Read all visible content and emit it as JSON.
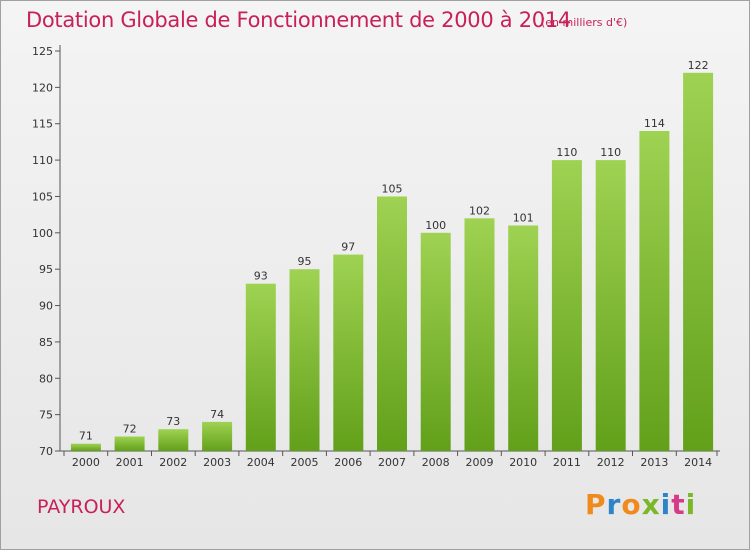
{
  "header": {
    "title": "Dotation Globale de Fonctionnement de 2000 à 2014",
    "unit": "(en milliers d'€)"
  },
  "footer": {
    "commune": "PAYROUX",
    "brand": "Proxiti"
  },
  "colors": {
    "accent": "#c8205a",
    "bar_top": "#9fd252",
    "bar_bottom": "#62a01a",
    "brand_letters": [
      "#f08a1c",
      "#2e84c8",
      "#f08a1c",
      "#7ab82a",
      "#2e84c8",
      "#d83a8a",
      "#7ab82a"
    ]
  },
  "chart_data": {
    "type": "bar",
    "title": "Dotation Globale de Fonctionnement de 2000 à 2014",
    "subtitle": "(en milliers d'€)",
    "xlabel": "",
    "ylabel": "",
    "categories": [
      "2000",
      "2001",
      "2002",
      "2003",
      "2004",
      "2005",
      "2006",
      "2007",
      "2008",
      "2009",
      "2010",
      "2011",
      "2012",
      "2013",
      "2014"
    ],
    "values": [
      71,
      72,
      73,
      74,
      93,
      95,
      97,
      105,
      100,
      102,
      101,
      110,
      110,
      114,
      122
    ],
    "ylim": [
      70,
      125
    ],
    "yticks": [
      70,
      75,
      80,
      85,
      90,
      95,
      100,
      105,
      110,
      115,
      120,
      125
    ],
    "grid": false,
    "legend": "none"
  }
}
